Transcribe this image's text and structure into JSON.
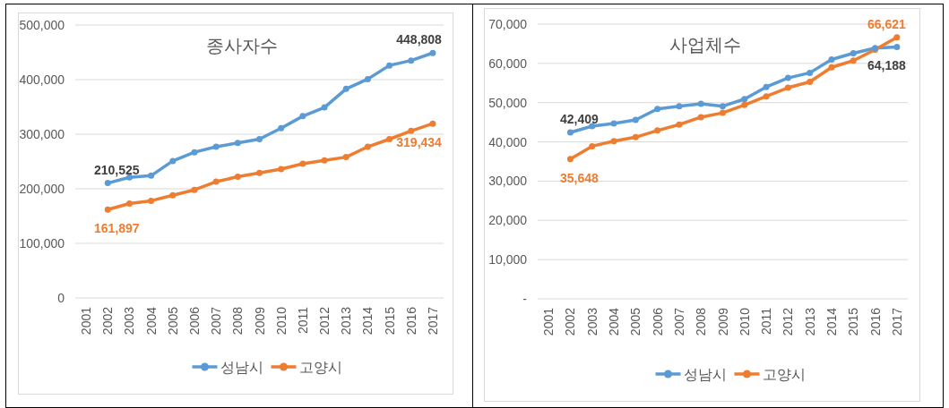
{
  "chart_data": [
    {
      "type": "line",
      "title": "종사자수",
      "categories": [
        "2001",
        "2002",
        "2003",
        "2004",
        "2005",
        "2006",
        "2007",
        "2008",
        "2009",
        "2010",
        "2011",
        "2012",
        "2013",
        "2014",
        "2015",
        "2016",
        "2017"
      ],
      "series": [
        {
          "name": "성남시",
          "color": "#5b9bd5",
          "values": [
            null,
            210525,
            221000,
            224000,
            251000,
            267000,
            277000,
            284000,
            291000,
            311000,
            333000,
            349000,
            383000,
            401000,
            426000,
            435000,
            448808
          ],
          "value_labels": [
            null,
            "210,525",
            null,
            null,
            null,
            null,
            null,
            null,
            null,
            null,
            null,
            null,
            null,
            null,
            null,
            null,
            "448,808"
          ]
        },
        {
          "name": "고양시",
          "color": "#ed7d31",
          "values": [
            null,
            161897,
            173000,
            178000,
            188000,
            198000,
            213000,
            222000,
            229000,
            236000,
            246000,
            252000,
            258000,
            277000,
            291000,
            306000,
            319434
          ],
          "value_labels": [
            null,
            "161,897",
            null,
            null,
            null,
            null,
            null,
            null,
            null,
            null,
            null,
            null,
            null,
            null,
            null,
            null,
            "319,434"
          ]
        }
      ],
      "ylim": [
        0,
        500000
      ],
      "yticks": [
        0,
        {
          "value": 100000,
          "label": "100,000"
        },
        {
          "value": 200000,
          "label": "200,000"
        },
        {
          "value": 300000,
          "label": "300,000"
        },
        {
          "value": 400000,
          "label": "400,000"
        },
        {
          "value": 500000,
          "label": "500,000"
        }
      ],
      "grid": "y",
      "legend": "bottom",
      "marker": "circle",
      "line_style": "solid"
    },
    {
      "type": "line",
      "title": "사업체수",
      "categories": [
        "2001",
        "2002",
        "2003",
        "2004",
        "2005",
        "2006",
        "2007",
        "2008",
        "2009",
        "2010",
        "2011",
        "2012",
        "2013",
        "2014",
        "2015",
        "2016",
        "2017"
      ],
      "series": [
        {
          "name": "성남시",
          "color": "#5b9bd5",
          "values": [
            null,
            42409,
            44000,
            44700,
            45600,
            48400,
            49100,
            49700,
            49100,
            50900,
            54000,
            56300,
            57600,
            61000,
            62600,
            63900,
            64188
          ],
          "value_labels": [
            null,
            "42,409",
            null,
            null,
            null,
            null,
            null,
            null,
            null,
            null,
            null,
            null,
            null,
            null,
            null,
            null,
            "64,188"
          ]
        },
        {
          "name": "고양시",
          "color": "#ed7d31",
          "values": [
            null,
            35648,
            38900,
            40200,
            41200,
            42900,
            44400,
            46300,
            47400,
            49400,
            51600,
            53800,
            55300,
            59000,
            60700,
            63500,
            66621
          ],
          "value_labels": [
            null,
            "35,648",
            null,
            null,
            null,
            null,
            null,
            null,
            null,
            null,
            null,
            null,
            null,
            null,
            null,
            null,
            "66,621"
          ]
        }
      ],
      "ylim": [
        0,
        70000
      ],
      "yticks": [
        {
          "value": 0,
          "label": "-"
        },
        {
          "value": 10000,
          "label": "10,000"
        },
        {
          "value": 20000,
          "label": "20,000"
        },
        {
          "value": 30000,
          "label": "30,000"
        },
        {
          "value": 40000,
          "label": "40,000"
        },
        {
          "value": 50000,
          "label": "50,000"
        },
        {
          "value": 60000,
          "label": "60,000"
        },
        {
          "value": 70000,
          "label": "70,000"
        }
      ],
      "grid": "y",
      "legend": "bottom",
      "marker": "circle",
      "line_style": "solid"
    }
  ]
}
